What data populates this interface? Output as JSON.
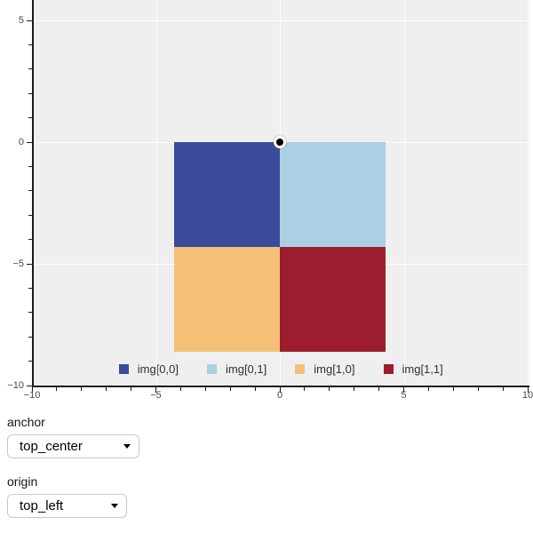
{
  "chart_data": {
    "type": "heatmap",
    "title": "",
    "background_fill_color": "#efefef",
    "grid": {
      "show": true,
      "color": "rgba(255,255,255,0.85)"
    },
    "x_axis": {
      "range": [
        -10,
        10
      ],
      "ticks": [
        -10,
        -5,
        0,
        5,
        10
      ],
      "tick_labels": [
        "−10",
        "−5",
        "0",
        "5",
        "10"
      ],
      "minor_tick_step": 1
    },
    "y_axis": {
      "range": [
        -10,
        10
      ],
      "visible_bottom": -10,
      "ticks": [
        5,
        0,
        -5,
        -10
      ],
      "tick_labels": [
        "5",
        "0",
        "−5",
        "−10"
      ],
      "minor_tick_step": 1
    },
    "image": {
      "rows": 2,
      "cols": 2,
      "cells": [
        {
          "row": 0,
          "col": 0,
          "label": "img[0,0]",
          "color": "#3a4b9b"
        },
        {
          "row": 0,
          "col": 1,
          "label": "img[0,1]",
          "color": "#abd0e3"
        },
        {
          "row": 1,
          "col": 0,
          "label": "img[1,0]",
          "color": "#f4bf76"
        },
        {
          "row": 1,
          "col": 1,
          "label": "img[1,1]",
          "color": "#9b1d2e"
        }
      ],
      "extent": {
        "x0": -4.25,
        "x1": 4.25,
        "y0": 0,
        "y1": -8.6
      },
      "anchor_point": {
        "x": 0,
        "y": 0,
        "fill": "#000000",
        "ring": "#ffffff"
      }
    },
    "legend": {
      "position": "bottom_center",
      "items": [
        "img[0,0]",
        "img[0,1]",
        "img[1,0]",
        "img[1,1]"
      ]
    }
  },
  "controls": {
    "anchor": {
      "label": "anchor",
      "value": "top_center"
    },
    "origin": {
      "label": "origin",
      "value": "top_left"
    }
  }
}
